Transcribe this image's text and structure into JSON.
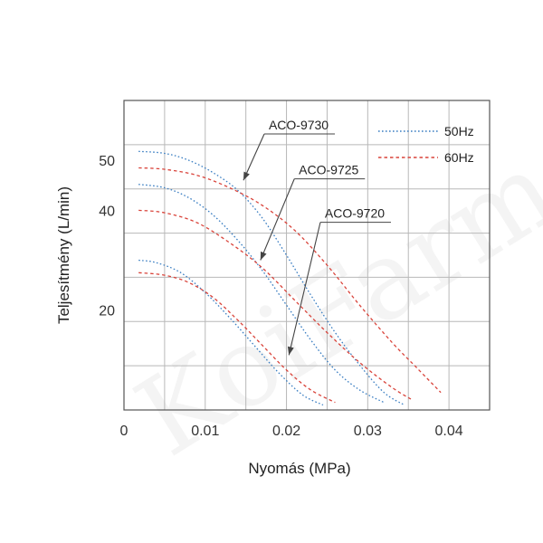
{
  "chart_data": {
    "type": "line",
    "xlabel": "Nyomás (MPa)",
    "ylabel": "Teljesítmény (L/min)",
    "xlim": [
      0,
      0.045
    ],
    "ylim": [
      0,
      62
    ],
    "xticks": [
      0,
      0.01,
      0.02,
      0.03,
      0.04
    ],
    "xtick_labels": [
      "0",
      "0.01",
      "0.02",
      "0.03",
      "0.04"
    ],
    "yticks": [
      20,
      40,
      50
    ],
    "ytick_labels": [
      "20",
      "40",
      "50"
    ],
    "grid": true,
    "legend": {
      "position": "top-right",
      "entries": [
        {
          "name": "50Hz",
          "color": "#3a7ec2",
          "dash": "dotted"
        },
        {
          "name": "60Hz",
          "color": "#d9433a",
          "dash": "dashed"
        }
      ]
    },
    "series": [
      {
        "name": "ACO-9730 50Hz",
        "color": "#3a7ec2",
        "dash": "dotted",
        "x": [
          0.0018,
          0.005,
          0.008,
          0.011,
          0.014,
          0.017,
          0.02,
          0.023,
          0.026,
          0.029,
          0.032,
          0.0345
        ],
        "y": [
          51.8,
          51.4,
          50.0,
          47.5,
          44.0,
          38.5,
          31.0,
          23.0,
          15.5,
          9.0,
          3.5,
          1.0
        ]
      },
      {
        "name": "ACO-9730 60Hz",
        "color": "#d9433a",
        "dash": "dashed",
        "x": [
          0.0018,
          0.005,
          0.009,
          0.013,
          0.017,
          0.021,
          0.025,
          0.029,
          0.033,
          0.036,
          0.039
        ],
        "y": [
          48.5,
          48.2,
          47.0,
          44.5,
          41.0,
          36.0,
          29.0,
          21.0,
          13.5,
          8.5,
          3.5
        ]
      },
      {
        "name": "ACO-9725 50Hz",
        "color": "#3a7ec2",
        "dash": "dotted",
        "x": [
          0.0018,
          0.005,
          0.008,
          0.011,
          0.014,
          0.017,
          0.02,
          0.023,
          0.026,
          0.029,
          0.032
        ],
        "y": [
          45.2,
          44.5,
          42.5,
          39.0,
          34.0,
          28.0,
          21.0,
          14.0,
          8.0,
          4.0,
          1.5
        ]
      },
      {
        "name": "ACO-9725 60Hz",
        "color": "#d9433a",
        "dash": "dashed",
        "x": [
          0.0018,
          0.005,
          0.009,
          0.013,
          0.017,
          0.021,
          0.025,
          0.029,
          0.033,
          0.0355
        ],
        "y": [
          40.0,
          39.5,
          37.5,
          33.5,
          28.5,
          22.0,
          15.5,
          9.5,
          4.5,
          2.0
        ]
      },
      {
        "name": "ACO-9720 50Hz",
        "color": "#3a7ec2",
        "dash": "dotted",
        "x": [
          0.0018,
          0.004,
          0.007,
          0.01,
          0.013,
          0.016,
          0.019,
          0.022,
          0.0245
        ],
        "y": [
          30.0,
          29.5,
          27.5,
          23.5,
          18.5,
          13.0,
          7.5,
          3.0,
          1.0
        ]
      },
      {
        "name": "ACO-9720 60Hz",
        "color": "#d9433a",
        "dash": "dashed",
        "x": [
          0.0018,
          0.005,
          0.008,
          0.011,
          0.014,
          0.017,
          0.02,
          0.023,
          0.026
        ],
        "y": [
          27.5,
          27.0,
          25.5,
          22.5,
          18.0,
          13.0,
          8.0,
          4.0,
          1.5
        ]
      }
    ],
    "annotations": [
      {
        "text": "ACO-9730",
        "x": 0.0215,
        "y": 56.2,
        "arrow_to": [
          0.0147,
          46.0
        ]
      },
      {
        "text": "ACO-9725",
        "x": 0.0252,
        "y": 47.2,
        "arrow_to": [
          0.0168,
          30.0
        ]
      },
      {
        "text": "ACO-9720",
        "x": 0.0284,
        "y": 38.5,
        "arrow_to": [
          0.0203,
          11.0
        ]
      }
    ]
  }
}
